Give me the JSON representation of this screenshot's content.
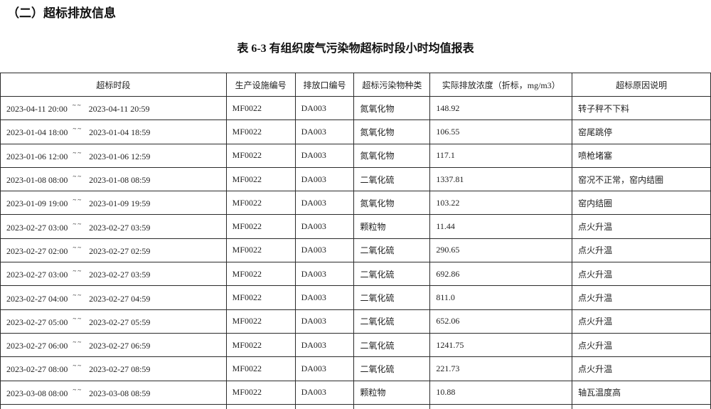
{
  "page": {
    "section_title": "（二）超标排放信息",
    "table_caption": "表 6-3 有组织废气污染物超标时段小时均值报表"
  },
  "colors": {
    "border": "#2b2b2b",
    "text": "#1c1c1c",
    "background": "#ffffff"
  },
  "table": {
    "columns": [
      "超标时段",
      "生产设施编号",
      "排放口编号",
      "超标污染物种类",
      "实际排放浓度（折标，mg/m3）",
      "超标原因说明"
    ],
    "period_separator": "~~",
    "rows": [
      {
        "period_start": "2023-04-11 20:00",
        "period_end": "2023-04-11 20:59",
        "facility_id": "MF0022",
        "outlet_id": "DA003",
        "pollutant": "氮氧化物",
        "concentration": "148.92",
        "reason": "转子秤不下料"
      },
      {
        "period_start": "2023-01-04 18:00",
        "period_end": "2023-01-04 18:59",
        "facility_id": "MF0022",
        "outlet_id": "DA003",
        "pollutant": "氮氧化物",
        "concentration": "106.55",
        "reason": "窑尾跳停"
      },
      {
        "period_start": "2023-01-06 12:00",
        "period_end": "2023-01-06 12:59",
        "facility_id": "MF0022",
        "outlet_id": "DA003",
        "pollutant": "氮氧化物",
        "concentration": "117.1",
        "reason": "喷枪堵塞"
      },
      {
        "period_start": "2023-01-08 08:00",
        "period_end": "2023-01-08 08:59",
        "facility_id": "MF0022",
        "outlet_id": "DA003",
        "pollutant": "二氧化硫",
        "concentration": "1337.81",
        "reason": "窑况不正常，窑内结圈"
      },
      {
        "period_start": "2023-01-09 19:00",
        "period_end": "2023-01-09 19:59",
        "facility_id": "MF0022",
        "outlet_id": "DA003",
        "pollutant": "氮氧化物",
        "concentration": "103.22",
        "reason": "窑内结圈"
      },
      {
        "period_start": "2023-02-27 03:00",
        "period_end": "2023-02-27 03:59",
        "facility_id": "MF0022",
        "outlet_id": "DA003",
        "pollutant": "颗粒物",
        "concentration": "11.44",
        "reason": "点火升温"
      },
      {
        "period_start": "2023-02-27 02:00",
        "period_end": "2023-02-27 02:59",
        "facility_id": "MF0022",
        "outlet_id": "DA003",
        "pollutant": "二氧化硫",
        "concentration": "290.65",
        "reason": "点火升温"
      },
      {
        "period_start": "2023-02-27 03:00",
        "period_end": "2023-02-27 03:59",
        "facility_id": "MF0022",
        "outlet_id": "DA003",
        "pollutant": "二氧化硫",
        "concentration": "692.86",
        "reason": "点火升温"
      },
      {
        "period_start": "2023-02-27 04:00",
        "period_end": "2023-02-27 04:59",
        "facility_id": "MF0022",
        "outlet_id": "DA003",
        "pollutant": "二氧化硫",
        "concentration": "811.0",
        "reason": "点火升温"
      },
      {
        "period_start": "2023-02-27 05:00",
        "period_end": "2023-02-27 05:59",
        "facility_id": "MF0022",
        "outlet_id": "DA003",
        "pollutant": "二氧化硫",
        "concentration": "652.06",
        "reason": "点火升温"
      },
      {
        "period_start": "2023-02-27 06:00",
        "period_end": "2023-02-27 06:59",
        "facility_id": "MF0022",
        "outlet_id": "DA003",
        "pollutant": "二氧化硫",
        "concentration": "1241.75",
        "reason": "点火升温"
      },
      {
        "period_start": "2023-02-27 08:00",
        "period_end": "2023-02-27 08:59",
        "facility_id": "MF0022",
        "outlet_id": "DA003",
        "pollutant": "二氧化硫",
        "concentration": "221.73",
        "reason": "点火升温"
      },
      {
        "period_start": "2023-03-08 08:00",
        "period_end": "2023-03-08 08:59",
        "facility_id": "MF0022",
        "outlet_id": "DA003",
        "pollutant": "颗粒物",
        "concentration": "10.88",
        "reason": "轴瓦温度高"
      }
    ]
  }
}
